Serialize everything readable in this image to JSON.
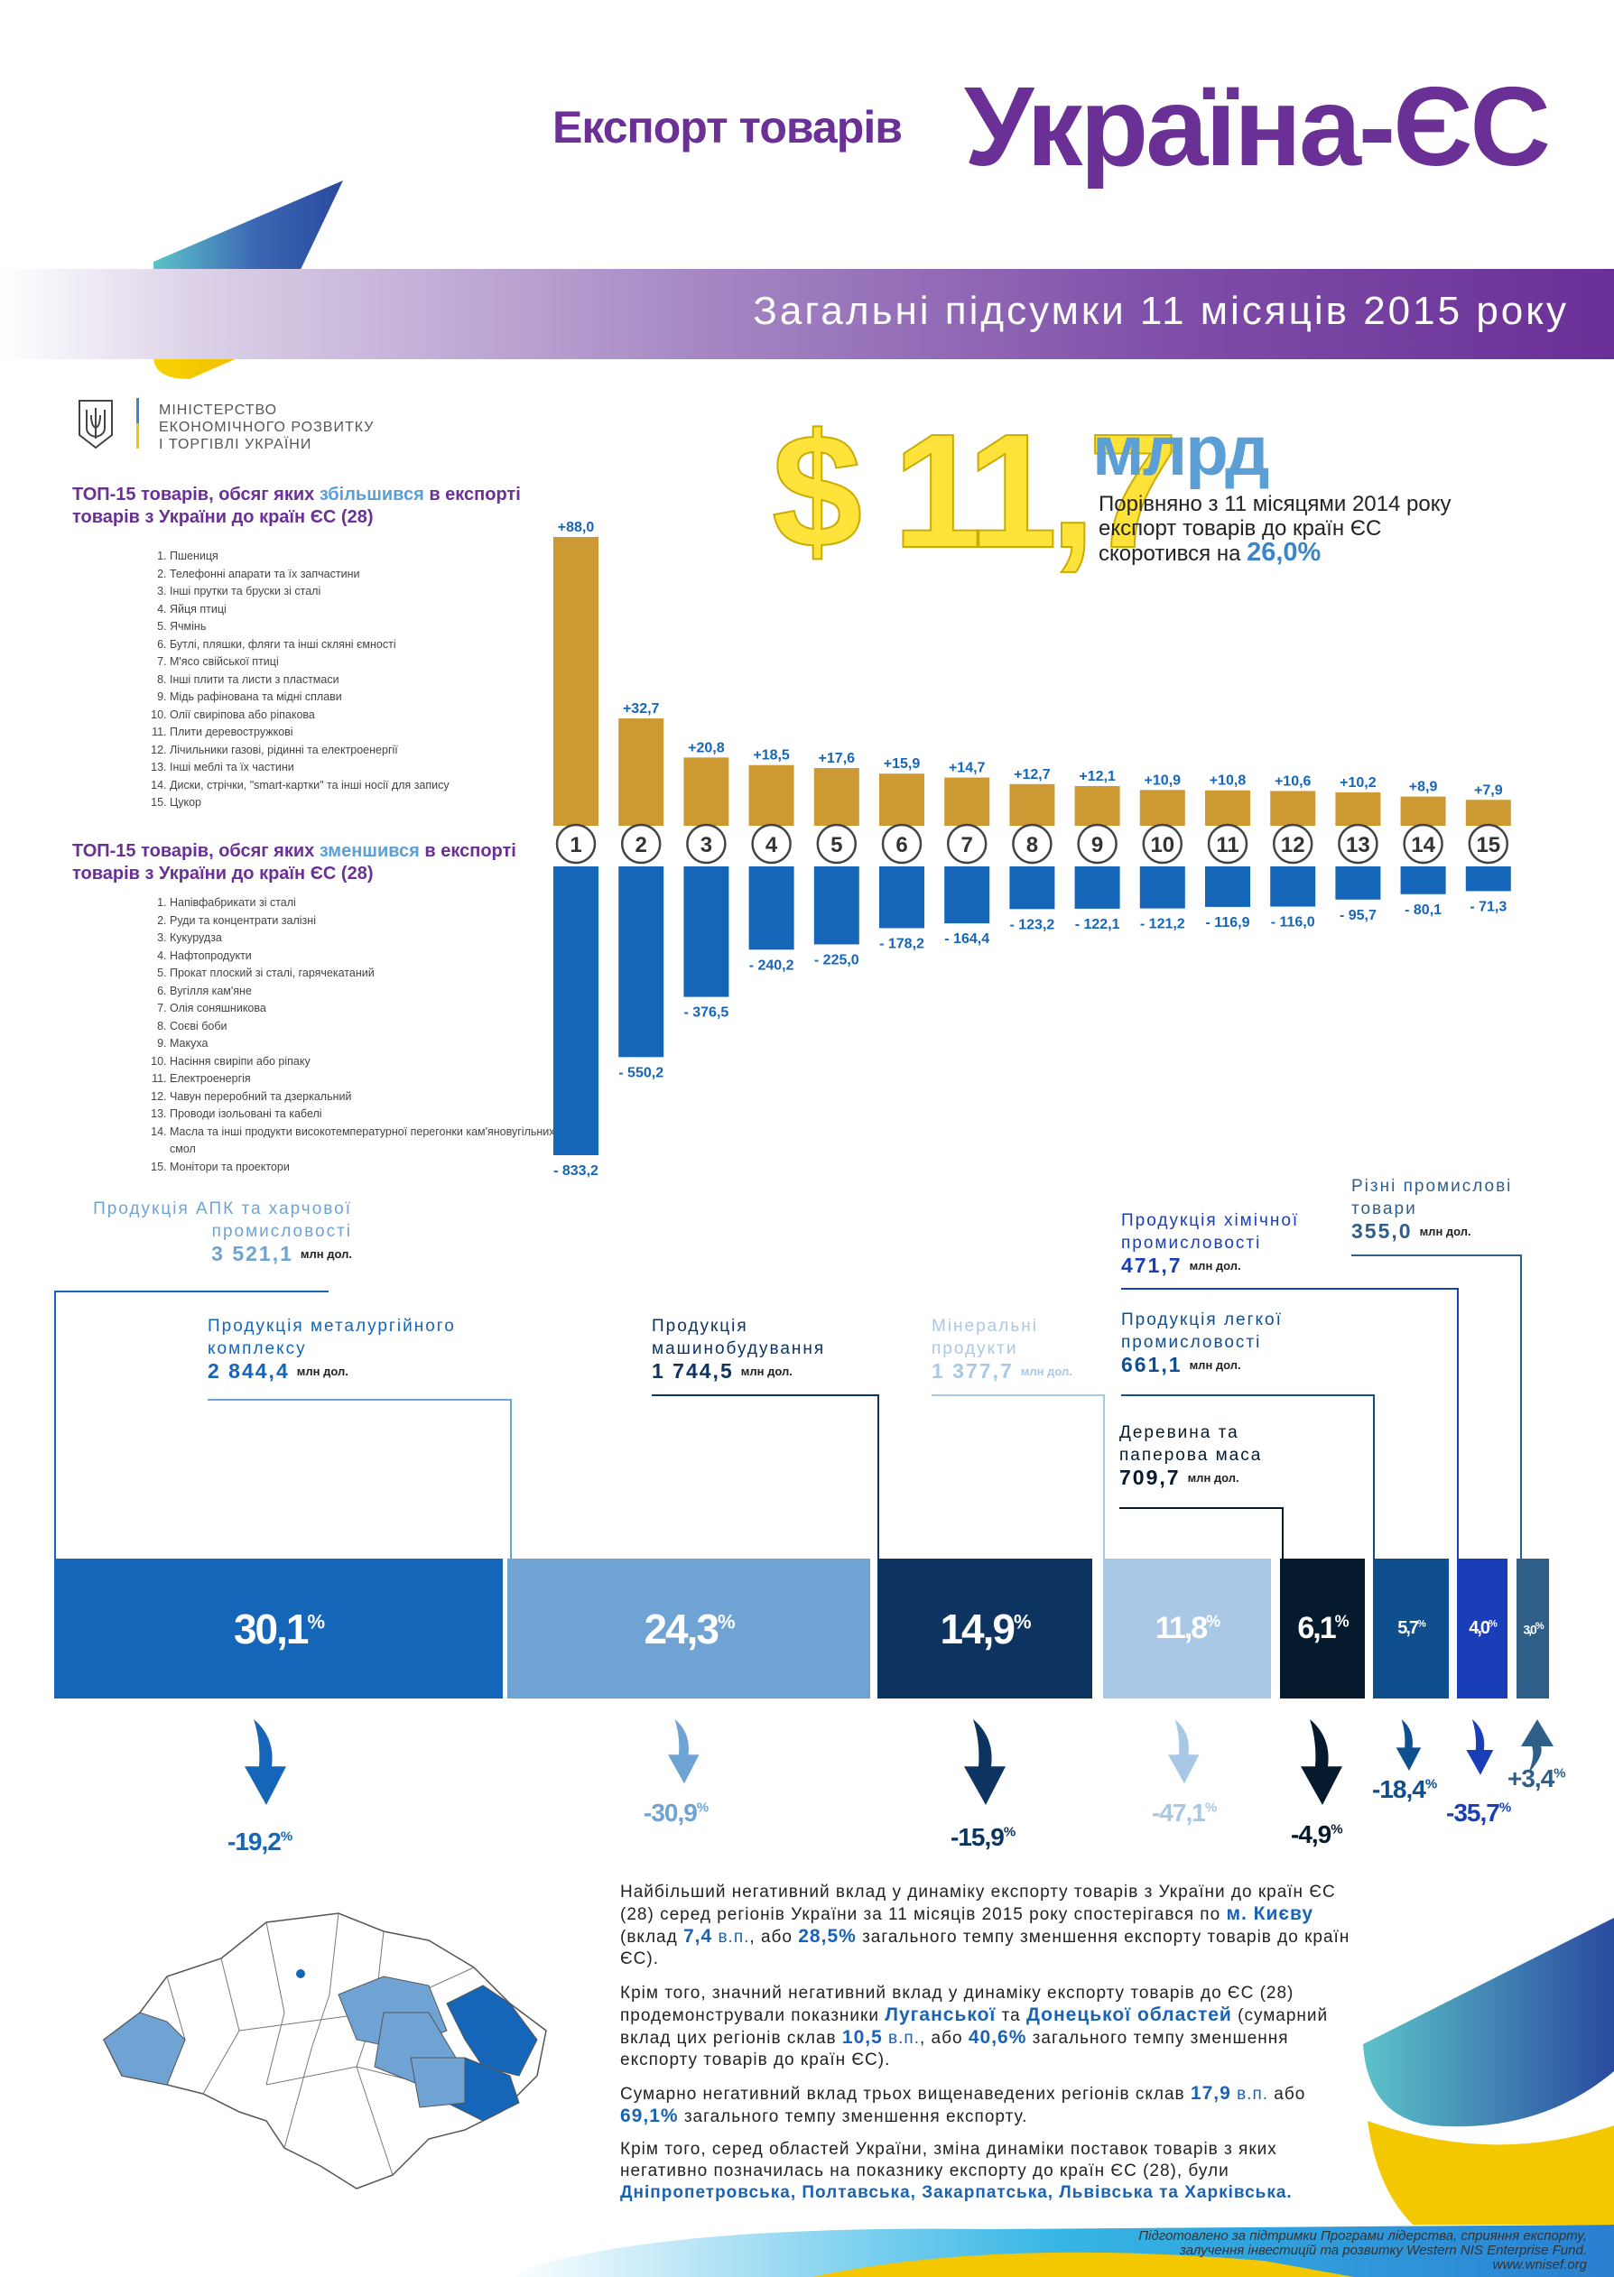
{
  "header": {
    "title_small": "Експорт товарів",
    "title_big": "Україна-ЄС",
    "banner": "Загальні підсумки 11 місяців 2015 року"
  },
  "ministry": {
    "line1": "МІНІСТЕРСТВО",
    "line2": "ЕКОНОМІЧНОГО РОЗВИТКУ",
    "line3": "І ТОРГІВЛІ УКРАЇНИ"
  },
  "increased": {
    "heading_a": "ТОП-15 товарів, обсяг яких ",
    "heading_hl": "збільшився",
    "heading_b": " в експорті товарів з України до країн ЄС (28)",
    "items": [
      "Пшениця",
      "Телефонні апарати та їх запчастини",
      "Інші прутки та бруски зі сталі",
      "Яйця птиці",
      "Ячмінь",
      "Бутлі, пляшки, фляги та інші скляні ємності",
      "М'ясо свійської птиці",
      "Інші плити та листи з пластмаси",
      "Мідь рафінована та мідні сплави",
      "Олії свиріпова або ріпакова",
      "Плити деревостружкові",
      "Лічильники газові, рідинні та електроенергії",
      "Інші меблі та їх частини",
      "Диски, стрічки, \"smart-картки\" та інші носії для запису",
      "Цукор"
    ]
  },
  "decreased": {
    "heading_a": "ТОП-15 товарів, обсяг яких ",
    "heading_hl": "зменшився",
    "heading_b": " в експорті товарів з України до країн ЄС (28)",
    "items": [
      "Напівфабрикати зі сталі",
      "Руди та концентрати залізні",
      "Кукурудза",
      "Нафтопродукти",
      "Прокат плоский зі сталі, гарячекатаний",
      "Вугілля кам'яне",
      "Олія соняшникова",
      "Соєві боби",
      "Макуха",
      "Насіння свиріпи або ріпаку",
      "Електроенергія",
      "Чавун переробний та дзеркальний",
      "Проводи ізольовані та кабелі",
      "Масла та інші продукти високотемпературної перегонки кам'яновугільних смол",
      "Монітори та проектори"
    ]
  },
  "summary": {
    "amount": "$ 11,7",
    "unit": "млрд",
    "text": "Порівняно з 11 місяцями 2014 року експорт товарів до країн ЄС скоротився на",
    "pct": "26,0%"
  },
  "colors": {
    "up": "#cc9933",
    "down": "#1565b8",
    "purple": "#6a3096"
  },
  "chart_data": [
    {
      "type": "bar",
      "ylabel": "млн дол.",
      "categories": [
        "1",
        "2",
        "3",
        "4",
        "5",
        "6",
        "7",
        "8",
        "9",
        "10",
        "11",
        "12",
        "13",
        "14",
        "15"
      ],
      "series": [
        {
          "values": [
            88.0,
            32.7,
            20.8,
            18.5,
            17.6,
            15.9,
            14.7,
            12.7,
            12.1,
            10.9,
            10.8,
            10.6,
            10.2,
            8.9,
            7.9
          ],
          "labels": [
            "+88,0",
            "+32,7",
            "+20,8",
            "+18,5",
            "+17,6",
            "+15,9",
            "+14,7",
            "+12,7",
            "+12,1",
            "+10,9",
            "+10,8",
            "+10,6",
            "+10,2",
            "+8,9",
            "+7,9"
          ]
        },
        {
          "values": [
            -833.2,
            -550.2,
            -376.5,
            -240.2,
            -225.0,
            -178.2,
            -164.4,
            -123.2,
            -122.1,
            -121.2,
            -116.9,
            -116.0,
            -95.7,
            -80.1,
            -71.3
          ],
          "labels": [
            "- 833,2",
            "- 550,2",
            "- 376,5",
            "- 240,2",
            "- 225,0",
            "- 178,2",
            "- 164,4",
            "- 123,2",
            "- 122,1",
            "- 121,2",
            "- 116,9",
            "- 116,0",
            "- 95,7",
            "- 80,1",
            "- 71,3"
          ]
        }
      ]
    },
    {
      "type": "bar",
      "categories": [
        "Продукція АПК та харчової промисловості",
        "Продукція металургійного комплексу",
        "Продукція машинобудування",
        "Мінеральні продукти",
        "Деревина та паперова маса",
        "Продукція легкої промисловості",
        "Продукція хімічної промисловості",
        "Різні промислові товари"
      ],
      "series": [
        {
          "name": "share",
          "values": [
            30.1,
            24.3,
            14.9,
            11.8,
            6.1,
            5.7,
            4.0,
            3.0
          ]
        },
        {
          "name": "change",
          "values": [
            -19.2,
            -30.9,
            -15.9,
            -47.1,
            -4.9,
            -18.4,
            -35.7,
            3.4
          ]
        }
      ]
    }
  ],
  "categories": [
    {
      "name": "Продукція АПК та харчової промисловості",
      "value": "3 521,1",
      "unit": "млн дол.",
      "share": "30,1",
      "change": "-19,2",
      "color": "#1565b8",
      "label_color": "#6fa3d4",
      "dir": "down"
    },
    {
      "name": "Продукція металургійного комплексу",
      "value": "2 844,4",
      "unit": "млн дол.",
      "share": "24,3",
      "change": "-30,9",
      "color": "#6fa3d4",
      "label_color": "#1565b8",
      "dir": "down"
    },
    {
      "name": "Продукція машинобудування",
      "value": "1 744,5",
      "unit": "млн дол.",
      "share": "14,9",
      "change": "-15,9",
      "color": "#0d3461",
      "label_color": "#0d3461",
      "dir": "down"
    },
    {
      "name": "Мінеральні продукти",
      "value": "1 377,7",
      "unit": "млн дол.",
      "share": "11,8",
      "change": "-47,1",
      "color": "#a8c8e6",
      "label_color": "#a8c8e6",
      "dir": "down"
    },
    {
      "name": "Деревина та паперова маса",
      "value": "709,7",
      "unit": "млн дол.",
      "share": "6,1",
      "change": "-4,9",
      "color": "#061a2e",
      "label_color": "#061a2e",
      "dir": "down"
    },
    {
      "name": "Продукція легкої промисловості",
      "value": "661,1",
      "unit": "млн дол.",
      "share": "5,7",
      "change": "-18,4",
      "color": "#0f4f8e",
      "label_color": "#0f4f8e",
      "dir": "down"
    },
    {
      "name": "Продукція хімічної промисловості",
      "value": "471,7",
      "unit": "млн дол.",
      "share": "4,0",
      "change": "-35,7",
      "color": "#1a3eb8",
      "label_color": "#1a3eb8",
      "dir": "down"
    },
    {
      "name": "Різні промислові товари",
      "value": "355,0",
      "unit": "млн дол.",
      "share": "3,0",
      "change": "+3,4",
      "color": "#2f5f88",
      "label_color": "#2f5f88",
      "dir": "up"
    }
  ],
  "paragraphs": {
    "p1": [
      "Найбільший негативний вклад у динаміку експорту товарів з України до країн ЄС (28) серед регіонів України за 11 місяців 2015 року спостерігався по ",
      "м. Києву",
      " (вклад ",
      "7,4",
      " в.п.",
      ", або ",
      "28,5%",
      " загального темпу зменшення експорту товарів до країн ЄС)."
    ],
    "p2": [
      "Крім того, значний негативний вклад у динаміку експорту товарів до ЄС (28) продемонстрували показники ",
      "Луганської",
      " та ",
      "Донецької областей",
      " (сумарний вклад цих регіонів склав ",
      "10,5",
      " в.п.",
      ", або ",
      "40,6%",
      " загального темпу зменшення експорту товарів до країн ЄС)."
    ],
    "p3": [
      "Сумарно негативний вклад трьох вищенаведених регіонів склав ",
      "17,9",
      " в.п.",
      " або ",
      "69,1%",
      " загального темпу зменшення експорту."
    ],
    "p4": [
      "Крім того, серед областей України, зміна динаміки поставок товарів з яких негативно позначилась на показнику експорту до країн ЄС (28), були ",
      "Дніпропетровська, Полтавська, Закарпатська, Львівська та Харківська."
    ]
  },
  "footer": {
    "line1": "Підготовлено за підтримки Програми лідерства, сприяння експорту,",
    "line2": "залучення інвестицій та розвитку Western NIS Enterprise Fund.",
    "line3": "www.wnisef.org"
  }
}
